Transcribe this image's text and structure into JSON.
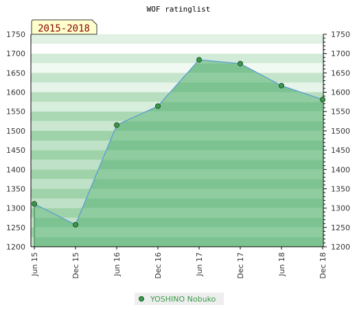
{
  "chart_data": {
    "type": "area",
    "title": "WOF ratinglist",
    "badge": "2015-2018",
    "x": [
      "Jun 15",
      "Dec 15",
      "Jun 16",
      "Dec 16",
      "Jun 17",
      "Dec 17",
      "Jun 18",
      "Dec 18"
    ],
    "series": [
      {
        "name": "YOSHINO Nobuko",
        "values": [
          1311,
          1257,
          1515,
          1564,
          1684,
          1674,
          1617,
          1581
        ]
      }
    ],
    "ylim": [
      1200,
      1750
    ],
    "yticks": [
      1200,
      1250,
      1300,
      1350,
      1400,
      1450,
      1500,
      1550,
      1600,
      1650,
      1700,
      1750
    ],
    "xlabel": "",
    "ylabel": "",
    "grid": true,
    "legend_position": "bottom-center",
    "colors": {
      "line": "#5b9bd5",
      "marker": "#3a9a4a",
      "legend_text": "#3a9a4a",
      "badge_bg": "#ffffcc"
    }
  }
}
